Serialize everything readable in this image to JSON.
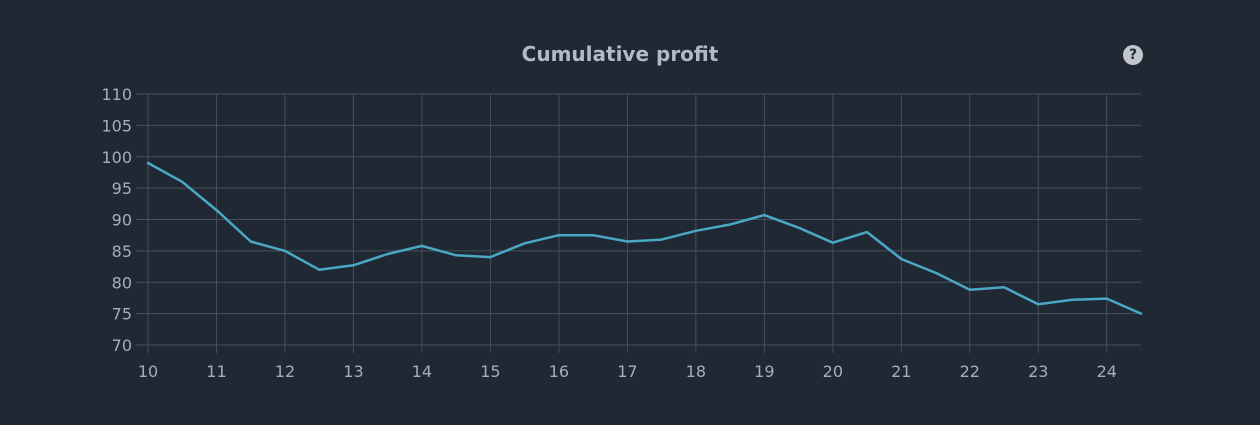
{
  "header": {
    "title": "Cumulative profit",
    "help_glyph": "?"
  },
  "chart_data": {
    "type": "line",
    "title": "Cumulative profit",
    "xlabel": "",
    "ylabel": "",
    "xlim": [
      10,
      24.5
    ],
    "ylim": [
      70,
      110
    ],
    "grid": true,
    "x_ticks": [
      10,
      11,
      12,
      13,
      14,
      15,
      16,
      17,
      18,
      19,
      20,
      21,
      22,
      23,
      24
    ],
    "y_ticks": [
      70,
      75,
      80,
      85,
      90,
      95,
      100,
      105,
      110
    ],
    "series": [
      {
        "color": "#4aa8c4",
        "x": [
          10,
          10.5,
          11,
          11.5,
          12,
          12.5,
          13,
          13.5,
          14,
          14.5,
          15,
          15.5,
          16,
          16.5,
          17,
          17.5,
          18,
          18.5,
          19,
          19.5,
          20,
          20.5,
          21,
          21.5,
          22,
          22.5,
          23,
          23.5,
          24,
          24.5
        ],
        "y": [
          99,
          96,
          91.5,
          86.5,
          85,
          82,
          82.7,
          84.5,
          85.8,
          84.3,
          84,
          86.2,
          87.5,
          87.5,
          86.5,
          86.8,
          88.2,
          89.2,
          90.7,
          88.7,
          86.3,
          88,
          83.7,
          81.5,
          78.8,
          79.2,
          76.5,
          77.2,
          77.4,
          75
        ]
      }
    ]
  },
  "colors": {
    "background": "#202833",
    "grid": "#46505c",
    "line": "#4aa8c4",
    "text": "#a8aeb7"
  }
}
